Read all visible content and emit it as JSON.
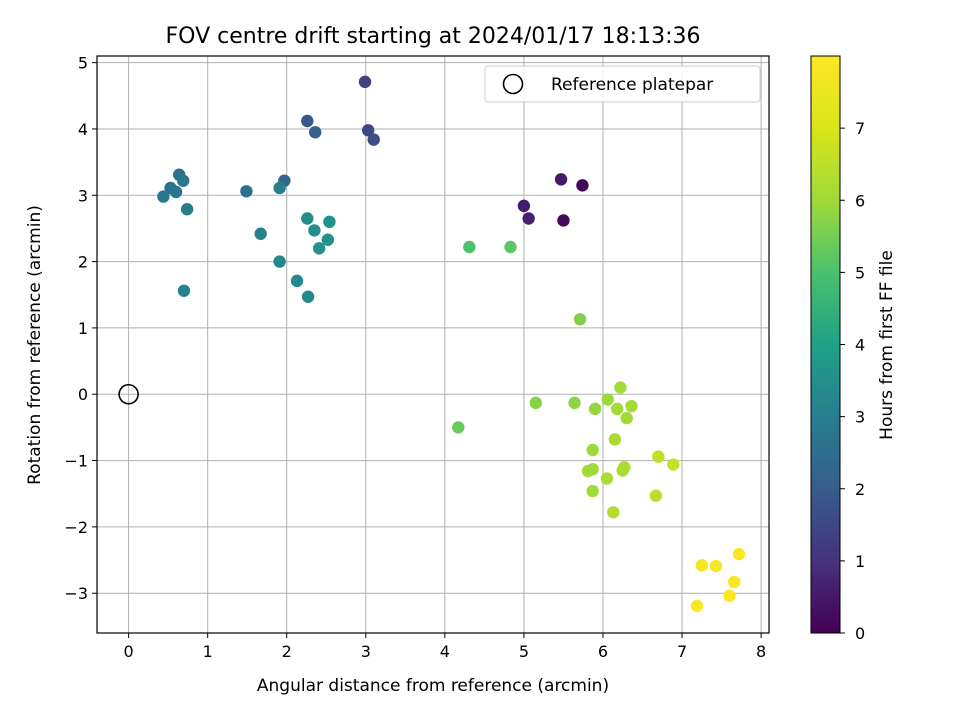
{
  "chart_data": {
    "type": "scatter",
    "title": "FOV centre drift starting at 2024/01/17 18:13:36",
    "xlabel": "Angular distance from reference (arcmin)",
    "ylabel": "Rotation from reference (arcmin)",
    "xlim": [
      -0.4,
      8.1
    ],
    "ylim": [
      -3.6,
      5.1
    ],
    "xticks": [
      0,
      1,
      2,
      3,
      4,
      5,
      6,
      7,
      8
    ],
    "yticks": [
      -3,
      -2,
      -1,
      0,
      1,
      2,
      3,
      4,
      5
    ],
    "grid": true,
    "legend": {
      "location": "top-right",
      "entries": [
        "Reference platepar"
      ]
    },
    "reference_point": {
      "x": 0,
      "y": 0,
      "label": "Reference platepar"
    },
    "colorbar": {
      "label": "Hours from first FF file",
      "range": [
        0,
        8
      ],
      "ticks": [
        0,
        1,
        2,
        3,
        4,
        5,
        6,
        7
      ],
      "colormap": "viridis"
    },
    "points": [
      {
        "x": 5.74,
        "y": 3.15,
        "hours": 0.1
      },
      {
        "x": 5.5,
        "y": 2.62,
        "hours": 0.2
      },
      {
        "x": 5.47,
        "y": 3.24,
        "hours": 0.45
      },
      {
        "x": 5.0,
        "y": 2.84,
        "hours": 0.55
      },
      {
        "x": 5.06,
        "y": 2.65,
        "hours": 0.65
      },
      {
        "x": 2.99,
        "y": 4.71,
        "hours": 1.35
      },
      {
        "x": 3.03,
        "y": 3.98,
        "hours": 1.5
      },
      {
        "x": 3.1,
        "y": 3.84,
        "hours": 1.65
      },
      {
        "x": 2.26,
        "y": 4.12,
        "hours": 1.9
      },
      {
        "x": 2.36,
        "y": 3.95,
        "hours": 2.05
      },
      {
        "x": 1.97,
        "y": 3.22,
        "hours": 2.3
      },
      {
        "x": 1.49,
        "y": 3.06,
        "hours": 2.55
      },
      {
        "x": 0.64,
        "y": 3.31,
        "hours": 2.6
      },
      {
        "x": 0.53,
        "y": 3.11,
        "hours": 2.65
      },
      {
        "x": 0.44,
        "y": 2.98,
        "hours": 2.7
      },
      {
        "x": 0.6,
        "y": 3.05,
        "hours": 2.7
      },
      {
        "x": 0.69,
        "y": 3.22,
        "hours": 2.8
      },
      {
        "x": 0.74,
        "y": 2.79,
        "hours": 2.9
      },
      {
        "x": 1.91,
        "y": 3.11,
        "hours": 3.0
      },
      {
        "x": 0.7,
        "y": 1.56,
        "hours": 3.1
      },
      {
        "x": 1.67,
        "y": 2.42,
        "hours": 3.1
      },
      {
        "x": 1.91,
        "y": 2.0,
        "hours": 3.2
      },
      {
        "x": 2.13,
        "y": 1.71,
        "hours": 3.25
      },
      {
        "x": 2.27,
        "y": 1.47,
        "hours": 3.3
      },
      {
        "x": 2.26,
        "y": 2.65,
        "hours": 3.4
      },
      {
        "x": 2.35,
        "y": 2.47,
        "hours": 3.45
      },
      {
        "x": 2.41,
        "y": 2.2,
        "hours": 3.5
      },
      {
        "x": 2.52,
        "y": 2.33,
        "hours": 3.55
      },
      {
        "x": 2.54,
        "y": 2.6,
        "hours": 3.6
      },
      {
        "x": 4.31,
        "y": 2.22,
        "hours": 5.0
      },
      {
        "x": 4.83,
        "y": 2.22,
        "hours": 5.2
      },
      {
        "x": 4.17,
        "y": -0.5,
        "hours": 5.35
      },
      {
        "x": 5.71,
        "y": 1.13,
        "hours": 5.6
      },
      {
        "x": 5.15,
        "y": -0.13,
        "hours": 5.7
      },
      {
        "x": 5.64,
        "y": -0.13,
        "hours": 5.75
      },
      {
        "x": 5.9,
        "y": -0.22,
        "hours": 5.85
      },
      {
        "x": 6.06,
        "y": -0.08,
        "hours": 5.95
      },
      {
        "x": 6.22,
        "y": 0.1,
        "hours": 6.05
      },
      {
        "x": 6.18,
        "y": -0.22,
        "hours": 6.05
      },
      {
        "x": 6.36,
        "y": -0.18,
        "hours": 6.1
      },
      {
        "x": 6.3,
        "y": -0.36,
        "hours": 6.0
      },
      {
        "x": 6.15,
        "y": -0.68,
        "hours": 6.1
      },
      {
        "x": 5.87,
        "y": -0.84,
        "hours": 5.95
      },
      {
        "x": 5.81,
        "y": -1.16,
        "hours": 6.1
      },
      {
        "x": 5.87,
        "y": -1.13,
        "hours": 6.0
      },
      {
        "x": 6.05,
        "y": -1.27,
        "hours": 6.15
      },
      {
        "x": 6.25,
        "y": -1.15,
        "hours": 6.2
      },
      {
        "x": 6.27,
        "y": -1.1,
        "hours": 6.25
      },
      {
        "x": 5.87,
        "y": -1.46,
        "hours": 6.0
      },
      {
        "x": 6.13,
        "y": -1.78,
        "hours": 6.35
      },
      {
        "x": 6.67,
        "y": -1.53,
        "hours": 6.45
      },
      {
        "x": 6.7,
        "y": -0.94,
        "hours": 6.55
      },
      {
        "x": 6.89,
        "y": -1.06,
        "hours": 6.65
      },
      {
        "x": 7.25,
        "y": -2.58,
        "hours": 7.75
      },
      {
        "x": 7.43,
        "y": -2.59,
        "hours": 7.8
      },
      {
        "x": 7.72,
        "y": -2.41,
        "hours": 7.85
      },
      {
        "x": 7.66,
        "y": -2.83,
        "hours": 7.9
      },
      {
        "x": 7.19,
        "y": -3.19,
        "hours": 7.9
      },
      {
        "x": 7.6,
        "y": -3.04,
        "hours": 7.95
      }
    ]
  }
}
